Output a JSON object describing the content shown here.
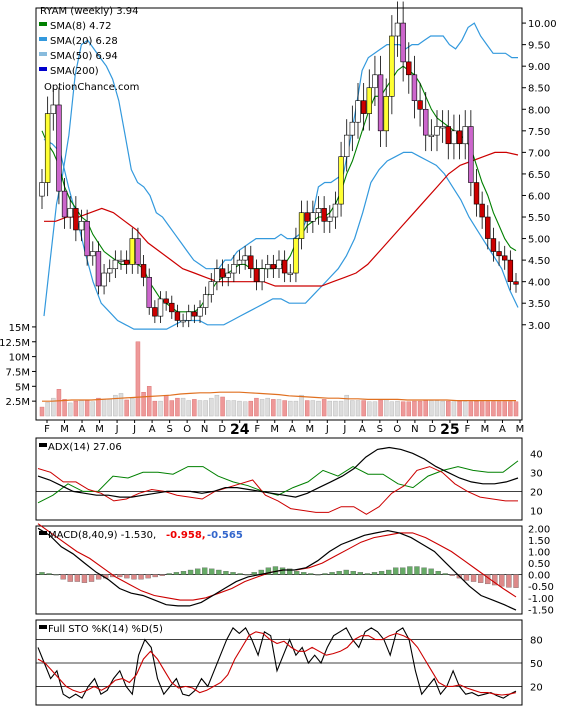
{
  "chart_data": {
    "type": "line",
    "title": "RYAM (weekly) 3.94",
    "watermark": "OptionChance.com",
    "legend_placement": "top-left",
    "price": {
      "yticks": [
        "10.00",
        "9.50",
        "9.00",
        "8.50",
        "8.00",
        "7.50",
        "7.00",
        "6.50",
        "6.00",
        "5.50",
        "5.00",
        "4.50",
        "4.00",
        "3.50",
        "3.00"
      ],
      "ylim": [
        2.6,
        10.35
      ],
      "legend": [
        {
          "label": "RYAM (weekly) 3.94",
          "color": "#000000"
        },
        {
          "label": "SMA(8) 4.72",
          "color": "#008000"
        },
        {
          "label": "SMA(20) 6.28",
          "color": "#3399dd"
        },
        {
          "label": "SMA(50) 6.94",
          "color": "#88bbdd"
        },
        {
          "label": "SMA(200)",
          "color": "#0000cc"
        }
      ],
      "closes": [
        6.3,
        7.9,
        8.1,
        6.1,
        5.5,
        5.7,
        5.2,
        5.4,
        4.6,
        4.7,
        3.9,
        4.2,
        4.3,
        4.5,
        4.5,
        4.4,
        5.0,
        4.4,
        4.1,
        3.4,
        3.2,
        3.6,
        3.5,
        3.3,
        3.1,
        3.1,
        3.3,
        3.2,
        3.4,
        3.7,
        4.0,
        4.3,
        4.1,
        4.2,
        4.4,
        4.5,
        4.6,
        4.3,
        4.0,
        4.3,
        4.4,
        4.3,
        4.5,
        4.2,
        4.2,
        5.0,
        5.6,
        5.4,
        5.6,
        5.7,
        5.4,
        5.5,
        5.8,
        6.9,
        7.4,
        7.7,
        8.2,
        7.9,
        8.5,
        8.8,
        7.5,
        8.3,
        9.7,
        10.0,
        9.1,
        8.8,
        8.2,
        8.0,
        7.4,
        7.4,
        7.6,
        7.6,
        7.2,
        7.5,
        7.2,
        7.6,
        6.3,
        5.8,
        5.5,
        5.0,
        4.7,
        4.6,
        4.5,
        4.0,
        3.94
      ],
      "sma8": [
        7.5,
        7.2,
        7.0,
        6.7,
        6.2,
        5.9,
        5.7,
        5.5,
        5.4,
        5.1,
        4.9,
        4.7,
        4.6,
        4.5,
        4.4,
        4.4,
        4.5,
        4.4,
        4.3,
        4.0,
        3.8,
        3.6,
        3.5,
        3.4,
        3.3,
        3.3,
        3.3,
        3.3,
        3.4,
        3.6,
        3.8,
        4.0,
        4.1,
        4.2,
        4.3,
        4.4,
        4.4,
        4.3,
        4.3,
        4.3,
        4.3,
        4.3,
        4.4,
        4.4,
        4.6,
        4.9,
        5.1,
        5.3,
        5.4,
        5.5,
        5.5,
        5.6,
        5.8,
        6.1,
        6.5,
        6.8,
        7.2,
        7.6,
        8.0,
        8.3,
        8.3,
        8.5,
        8.7,
        8.9,
        9.0,
        8.9,
        8.8,
        8.6,
        8.3,
        8.0,
        7.8,
        7.7,
        7.6,
        7.5,
        7.4,
        7.3,
        7.1,
        6.7,
        6.3,
        6.0,
        5.6,
        5.3,
        5.0,
        4.8,
        4.72
      ],
      "bb_upper": [
        3.2,
        4.5,
        5.8,
        6.5,
        7.4,
        8.8,
        9.5,
        9.6,
        9.4,
        9.2,
        9.0,
        8.7,
        8.2,
        7.4,
        6.6,
        6.3,
        6.2,
        6.0,
        5.6,
        5.5,
        5.3,
        5.1,
        4.9,
        4.7,
        4.5,
        4.4,
        4.3,
        4.3,
        4.3,
        4.5,
        4.5,
        4.7,
        4.8,
        4.9,
        5.0,
        5.0,
        5.0,
        5.0,
        5.1,
        5.0,
        5.0,
        5.1,
        5.4,
        5.5,
        6.2,
        6.3,
        6.3,
        6.4,
        6.5,
        7.2,
        8.0,
        8.9,
        9.2,
        9.3,
        9.4,
        9.5,
        9.5,
        9.5,
        9.4,
        9.5,
        9.5,
        9.6,
        9.7,
        9.7,
        9.7,
        9.5,
        9.4,
        9.6,
        9.9,
        10.0,
        9.7,
        9.5,
        9.3,
        9.3,
        9.3,
        9.2,
        9.2
      ],
      "bb_lower": [
        7.3,
        7.2,
        7.0,
        6.2,
        5.5,
        4.7,
        4.0,
        3.5,
        3.3,
        3.1,
        3.0,
        2.9,
        2.9,
        2.9,
        2.9,
        2.9,
        3.0,
        3.1,
        3.1,
        3.1,
        3.0,
        3.0,
        3.0,
        3.1,
        3.2,
        3.3,
        3.4,
        3.5,
        3.6,
        3.6,
        3.5,
        3.5,
        3.5,
        3.7,
        3.9,
        4.1,
        4.3,
        4.6,
        5.0,
        5.6,
        6.3,
        6.6,
        6.8,
        6.9,
        7.0,
        7.0,
        6.9,
        6.8,
        6.7,
        6.5,
        6.2,
        5.9,
        5.5,
        5.2,
        4.9,
        4.6,
        4.3,
        3.8,
        3.4
      ],
      "sma50": [
        5.4,
        5.4,
        5.5,
        5.5,
        5.6,
        5.7,
        5.6,
        5.4,
        5.2,
        4.9,
        4.7,
        4.5,
        4.3,
        4.2,
        4.1,
        4.0,
        4.0,
        4.0,
        4.0,
        4.0,
        3.9,
        3.9,
        3.9,
        3.9,
        3.9,
        4.0,
        4.1,
        4.2,
        4.4,
        4.7,
        5.0,
        5.3,
        5.6,
        5.9,
        6.2,
        6.5,
        6.7,
        6.8,
        6.9,
        7.0,
        7.0,
        6.94
      ],
      "sma200_visible": false
    },
    "volume": {
      "yticks": [
        "15M",
        "12.5M",
        "10M",
        "7.5M",
        "5M",
        "2.5M"
      ],
      "ylim": [
        0,
        16500000
      ],
      "values": [
        1500000,
        2300000,
        3000000,
        4500000,
        2800000,
        2200000,
        2500000,
        2600000,
        2600000,
        2400000,
        3000000,
        2800000,
        2800000,
        3500000,
        3800000,
        2700000,
        3000000,
        12500000,
        4000000,
        5000000,
        2500000,
        2500000,
        3500000,
        2600000,
        3000000,
        3000000,
        2600000,
        2800000,
        2600000,
        2600000,
        3000000,
        3500000,
        3200000,
        2600000,
        2600000,
        2500000,
        2400000,
        2500000,
        3000000,
        2800000,
        3000000,
        2800000,
        2800000,
        2600000,
        2500000,
        2500000,
        3500000,
        2600000,
        2600000,
        2500000,
        2800000,
        2500000,
        2500000,
        2500000,
        3500000,
        2600000,
        2600000,
        2600000,
        2400000,
        2400000,
        2700000,
        2800000,
        2400000,
        2500000,
        2400000,
        2400000,
        2500000,
        2500000,
        2600000,
        2600000,
        2600000,
        2500000,
        2500000,
        2400000,
        2500000,
        2400000,
        2400000,
        2500000,
        2400000,
        2400000,
        2400000,
        2400000,
        2400000,
        2400000,
        2400000
      ],
      "avg": [
        2500000,
        2500000,
        2600000,
        2700000,
        2700000,
        2700000,
        2800000,
        2900000,
        3000000,
        3100000,
        3200000,
        3300000,
        3400000,
        3500000,
        3700000,
        3800000,
        3900000,
        3900000,
        4000000,
        4000000,
        4000000,
        3900000,
        3800000,
        3700000,
        3600000,
        3400000,
        3300000,
        3200000,
        3100000,
        3000000,
        3000000,
        2900000,
        2900000,
        2800000,
        2800000,
        2800000,
        2800000,
        2700000,
        2700000,
        2700000,
        2700000,
        2700000,
        2600000,
        2600000,
        2600000,
        2600000,
        2600000,
        2600000,
        2600000
      ]
    },
    "x_axis": {
      "labels": [
        "F",
        "M",
        "A",
        "M",
        "J",
        "J",
        "A",
        "S",
        "O",
        "N",
        "D",
        "24",
        "F",
        "M",
        "A",
        "M",
        "J",
        "J",
        "A",
        "S",
        "O",
        "N",
        "D",
        "25",
        "F",
        "M",
        "A",
        "M"
      ],
      "bold": [
        "24",
        "25"
      ]
    },
    "adx": {
      "title": "ADX(14) 27.06",
      "yticks": [
        "40",
        "30",
        "20",
        "10"
      ],
      "ylim": [
        5,
        48
      ],
      "adx": [
        28,
        26,
        23,
        20,
        19,
        18,
        18,
        17,
        17,
        18,
        19,
        20,
        20,
        20,
        19,
        20,
        22,
        22,
        21,
        20,
        19,
        18,
        17,
        19,
        22,
        25,
        28,
        32,
        38,
        42,
        43,
        42,
        40,
        37,
        33,
        30,
        27,
        25,
        24,
        24,
        25,
        27
      ],
      "plus_di": [
        14,
        18,
        24,
        20,
        20,
        28,
        27,
        30,
        30,
        29,
        33,
        33,
        28,
        25,
        23,
        20,
        18,
        22,
        25,
        31,
        28,
        33,
        29,
        29,
        24,
        22,
        28,
        31,
        33,
        31,
        30,
        30,
        36
      ],
      "minus_di": [
        32,
        30,
        25,
        25,
        21,
        19,
        15,
        16,
        19,
        21,
        20,
        18,
        17,
        16,
        20,
        22,
        24,
        26,
        18,
        15,
        11,
        10,
        9,
        9,
        12,
        12,
        8,
        12,
        19,
        23,
        31,
        33,
        30,
        24,
        20,
        17,
        16,
        15,
        15
      ]
    },
    "macd": {
      "title": "MACD(8,40,9) -1.530,",
      "signal_value": "-0.958,",
      "hist_value": "-0.565",
      "yticks": [
        "2.00",
        "1.50",
        "1.00",
        "0.50",
        "0.00",
        "-0.50",
        "-1.00",
        "-1.50"
      ],
      "ylim": [
        -1.7,
        2.1
      ],
      "macd": [
        2.0,
        1.7,
        1.2,
        0.9,
        0.5,
        0.1,
        -0.2,
        -0.6,
        -0.8,
        -0.9,
        -1.1,
        -1.3,
        -1.35,
        -1.35,
        -1.2,
        -0.9,
        -0.6,
        -0.3,
        -0.1,
        0.0,
        0.1,
        0.2,
        0.2,
        0.3,
        0.6,
        1.0,
        1.3,
        1.5,
        1.7,
        1.8,
        1.9,
        1.8,
        1.6,
        1.3,
        1.0,
        0.5,
        0.0,
        -0.5,
        -0.9,
        -1.1,
        -1.3,
        -1.53
      ],
      "signal": [
        2.2,
        1.8,
        1.4,
        1.0,
        0.7,
        0.3,
        -0.1,
        -0.4,
        -0.7,
        -0.9,
        -1.0,
        -1.1,
        -1.1,
        -1.0,
        -0.8,
        -0.6,
        -0.3,
        -0.1,
        0.1,
        0.2,
        0.2,
        0.3,
        0.5,
        0.8,
        1.1,
        1.4,
        1.6,
        1.7,
        1.8,
        1.8,
        1.6,
        1.3,
        1.0,
        0.6,
        0.2,
        -0.2,
        -0.6,
        -0.96
      ],
      "hist": [
        0.1,
        0.05,
        0,
        -0.2,
        -0.3,
        -0.3,
        -0.35,
        -0.3,
        -0.2,
        -0.15,
        -0.1,
        -0.1,
        -0.15,
        -0.2,
        -0.2,
        -0.15,
        -0.1,
        -0.05,
        0.05,
        0.1,
        0.15,
        0.2,
        0.25,
        0.3,
        0.25,
        0.2,
        0.15,
        0.1,
        0.05,
        0,
        0.1,
        0.2,
        0.3,
        0.35,
        0.3,
        0.25,
        0.15,
        0.1,
        0.05,
        0,
        0.05,
        0.1,
        0.15,
        0.2,
        0.15,
        0.1,
        0.05,
        0.1,
        0.15,
        0.2,
        0.3,
        0.3,
        0.35,
        0.35,
        0.3,
        0.25,
        0.15,
        0.05,
        -0.05,
        -0.15,
        -0.25,
        -0.3,
        -0.35,
        -0.4,
        -0.45,
        -0.5,
        -0.55,
        -0.565
      ]
    },
    "sto": {
      "title": "Full STO %K(14) %D(5)",
      "yticks": [
        "80",
        "50",
        "20"
      ],
      "ylim": [
        0,
        100
      ],
      "k": [
        70,
        50,
        30,
        40,
        10,
        5,
        10,
        5,
        20,
        30,
        10,
        15,
        30,
        40,
        20,
        10,
        60,
        80,
        70,
        30,
        10,
        20,
        30,
        10,
        8,
        15,
        30,
        20,
        40,
        60,
        80,
        95,
        88,
        95,
        80,
        60,
        90,
        85,
        40,
        60,
        80,
        60,
        70,
        50,
        60,
        50,
        70,
        85,
        90,
        95,
        80,
        70,
        90,
        95,
        90,
        80,
        60,
        90,
        95,
        80,
        40,
        10,
        20,
        30,
        10,
        20,
        40,
        20,
        10,
        12,
        8,
        10,
        12,
        8,
        5,
        10,
        14
      ],
      "d": [
        55,
        50,
        40,
        30,
        20,
        15,
        12,
        15,
        20,
        15,
        20,
        28,
        30,
        25,
        35,
        55,
        65,
        55,
        40,
        25,
        18,
        20,
        18,
        12,
        15,
        20,
        25,
        35,
        55,
        70,
        85,
        90,
        88,
        80,
        75,
        78,
        70,
        65,
        65,
        70,
        65,
        60,
        62,
        65,
        70,
        80,
        85,
        85,
        80,
        80,
        85,
        88,
        85,
        80,
        70,
        55,
        40,
        25,
        20,
        20,
        22,
        18,
        15,
        12,
        12,
        10,
        9,
        10,
        12
      ]
    },
    "colors": {
      "price_up": "#ffffff",
      "price_down": "#cc0000",
      "price_highlight_up": "#ffff33",
      "price_highlight_down": "#cc66cc",
      "sma8": "#008000",
      "bollinger": "#3399dd",
      "sma50": "#cc0000",
      "volume_up": "#dddddd",
      "volume_down": "#ee9999",
      "volume_avg": "#e07020",
      "adx": "#000000",
      "plus_di": "#008000",
      "minus_di": "#cc0000",
      "macd": "#000000",
      "signal": "#cc0000",
      "hist_pos": "#66aa66",
      "hist_neg": "#dd8888",
      "sto_k": "#000000",
      "sto_d": "#cc0000",
      "signal_text": "#ee0000",
      "hist_text": "#3366cc"
    }
  }
}
